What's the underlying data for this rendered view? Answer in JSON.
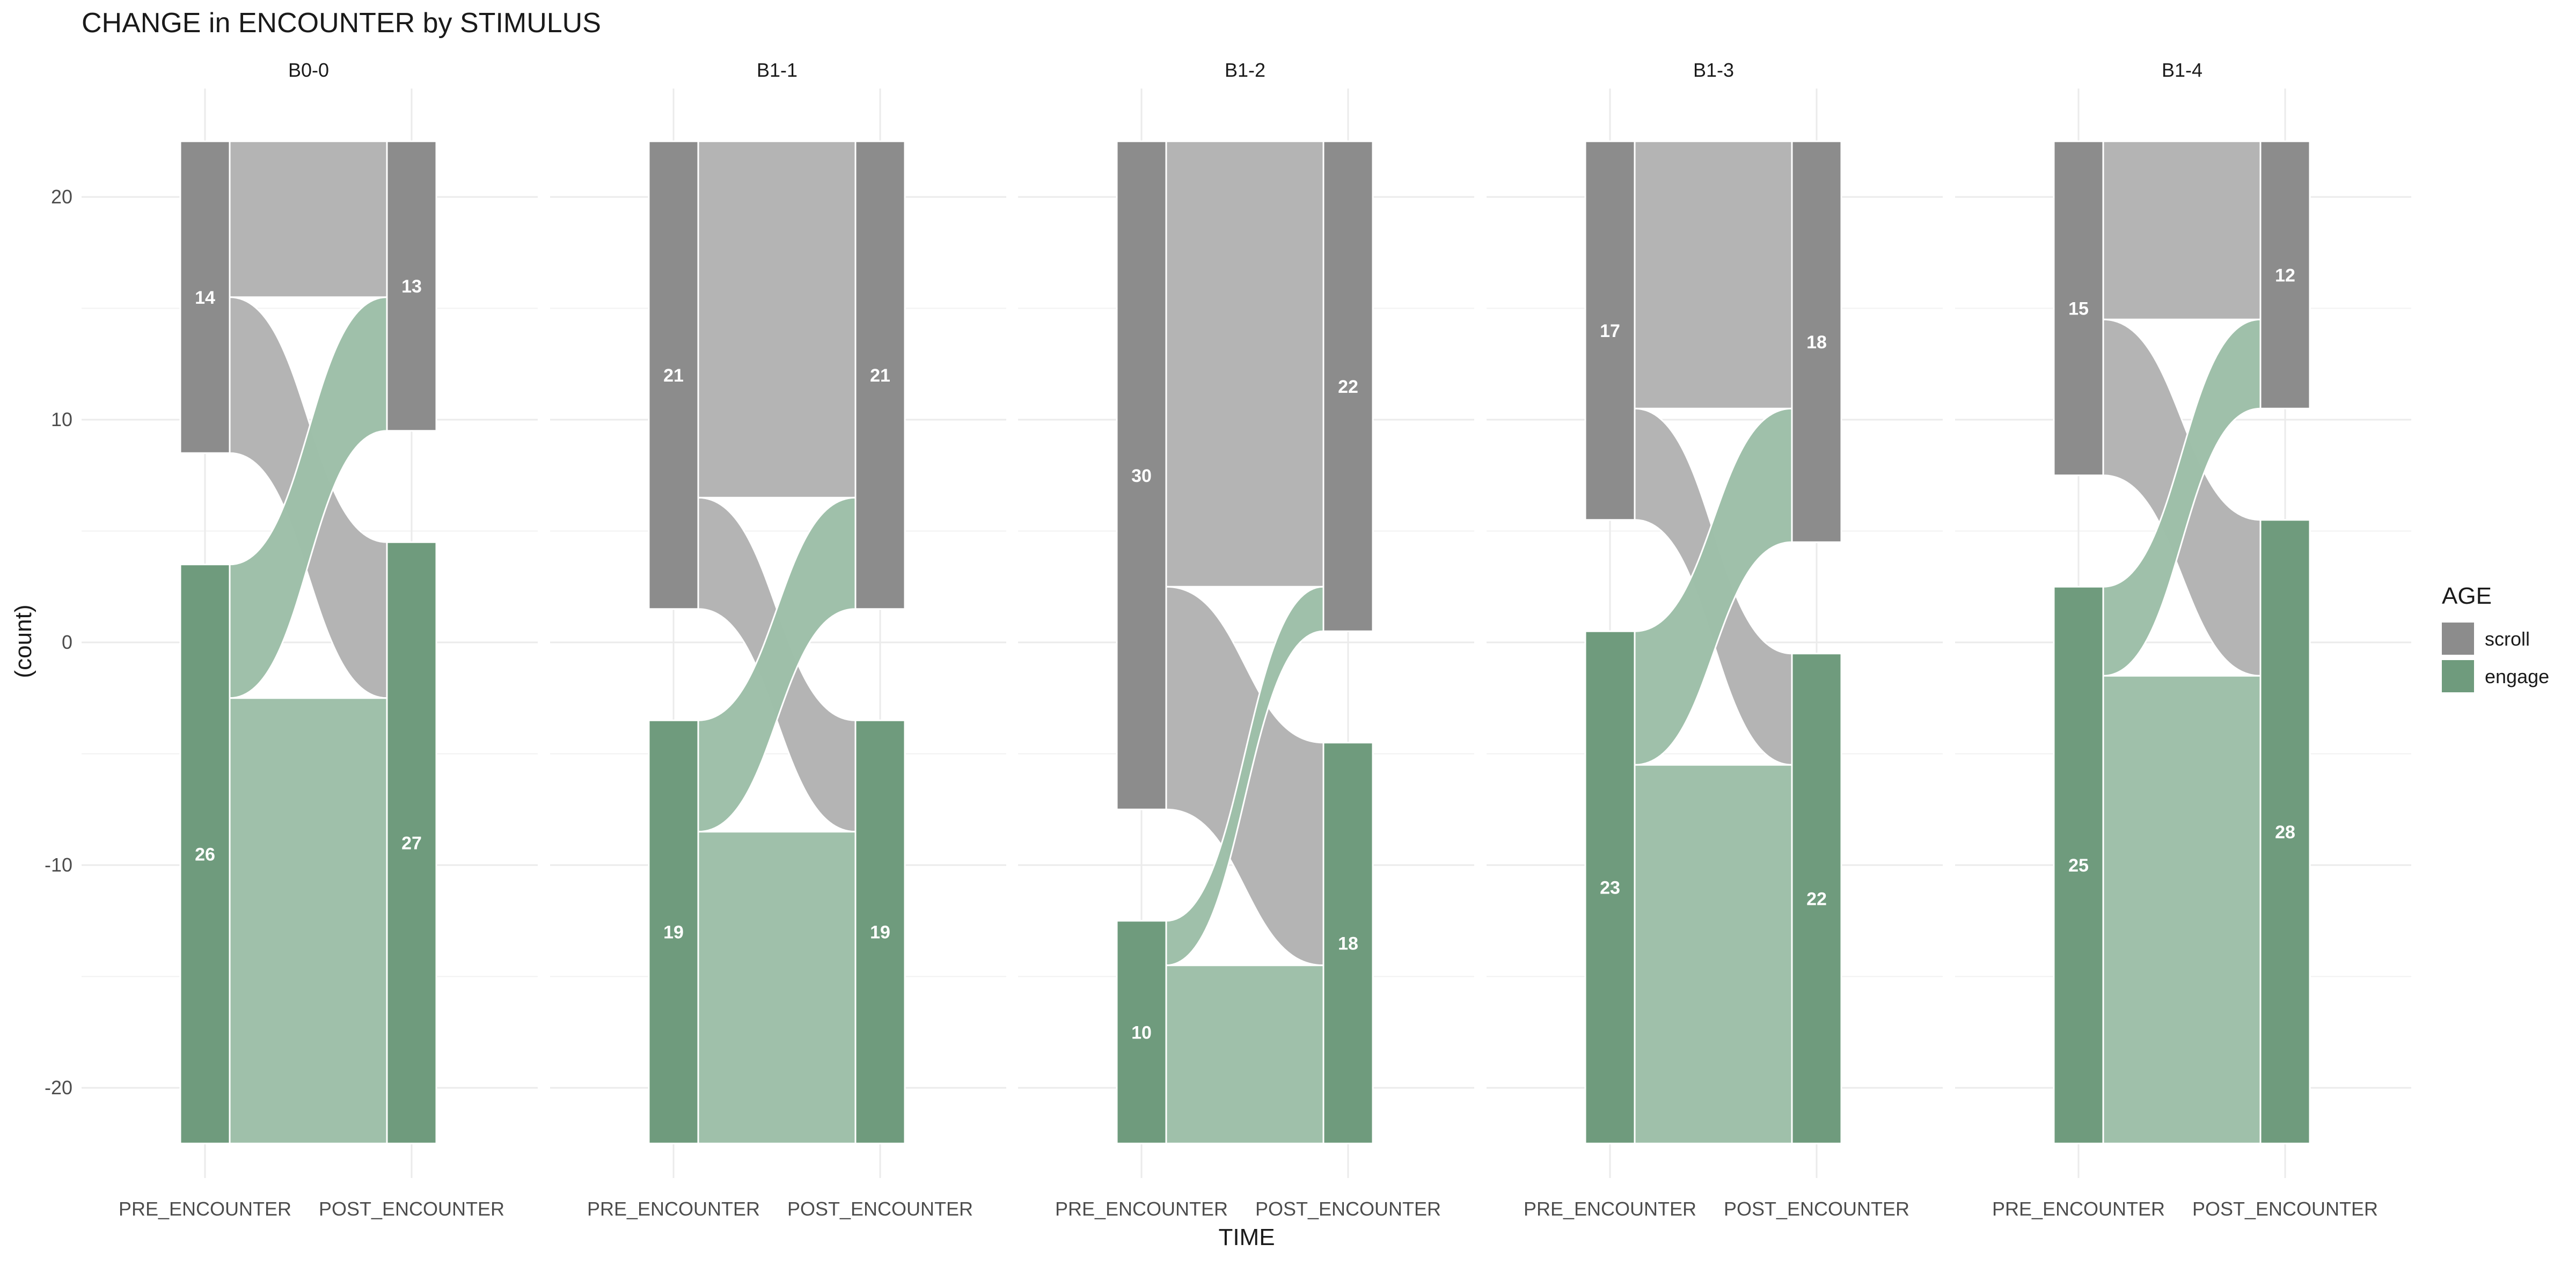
{
  "chart_data": {
    "type": "alluvial",
    "title": "CHANGE in ENCOUNTER by STIMULUS",
    "xlabel": "TIME",
    "ylabel": "(count)",
    "x_categories": [
      "PRE_ENCOUNTER",
      "POST_ENCOUNTER"
    ],
    "y_ticks": [
      20,
      10,
      0,
      -10,
      -20
    ],
    "ylim": [
      -24.5,
      24.5
    ],
    "grid": true,
    "legend": {
      "title": "AGE",
      "position": "right",
      "items": [
        {
          "label": "scroll",
          "color": "#8c8c8c"
        },
        {
          "label": "engage",
          "color": "#6f9b7d"
        }
      ]
    },
    "flow_colors": {
      "scroll": "#b3b3b3",
      "engage": "#9dbfa8"
    },
    "panels": [
      {
        "name": "B0-0",
        "pre": {
          "scroll": 14,
          "engage": 26
        },
        "post": {
          "scroll": 13,
          "engage": 27
        },
        "flows": [
          {
            "from": "scroll",
            "to": "scroll",
            "value": 7
          },
          {
            "from": "scroll",
            "to": "engage",
            "value": 7
          },
          {
            "from": "engage",
            "to": "scroll",
            "value": 6
          },
          {
            "from": "engage",
            "to": "engage",
            "value": 20
          }
        ]
      },
      {
        "name": "B1-1",
        "pre": {
          "scroll": 21,
          "engage": 19
        },
        "post": {
          "scroll": 21,
          "engage": 19
        },
        "flows": [
          {
            "from": "scroll",
            "to": "scroll",
            "value": 16
          },
          {
            "from": "scroll",
            "to": "engage",
            "value": 5
          },
          {
            "from": "engage",
            "to": "scroll",
            "value": 5
          },
          {
            "from": "engage",
            "to": "engage",
            "value": 14
          }
        ]
      },
      {
        "name": "B1-2",
        "pre": {
          "scroll": 30,
          "engage": 10
        },
        "post": {
          "scroll": 22,
          "engage": 18
        },
        "flows": [
          {
            "from": "scroll",
            "to": "scroll",
            "value": 20
          },
          {
            "from": "scroll",
            "to": "engage",
            "value": 10
          },
          {
            "from": "engage",
            "to": "scroll",
            "value": 2
          },
          {
            "from": "engage",
            "to": "engage",
            "value": 8
          }
        ]
      },
      {
        "name": "B1-3",
        "pre": {
          "scroll": 17,
          "engage": 23
        },
        "post": {
          "scroll": 18,
          "engage": 22
        },
        "flows": [
          {
            "from": "scroll",
            "to": "scroll",
            "value": 12
          },
          {
            "from": "scroll",
            "to": "engage",
            "value": 5
          },
          {
            "from": "engage",
            "to": "scroll",
            "value": 6
          },
          {
            "from": "engage",
            "to": "engage",
            "value": 17
          }
        ]
      },
      {
        "name": "B1-4",
        "pre": {
          "scroll": 15,
          "engage": 25
        },
        "post": {
          "scroll": 12,
          "engage": 28
        },
        "flows": [
          {
            "from": "scroll",
            "to": "scroll",
            "value": 8
          },
          {
            "from": "scroll",
            "to": "engage",
            "value": 7
          },
          {
            "from": "engage",
            "to": "scroll",
            "value": 4
          },
          {
            "from": "engage",
            "to": "engage",
            "value": 21
          }
        ]
      }
    ]
  }
}
